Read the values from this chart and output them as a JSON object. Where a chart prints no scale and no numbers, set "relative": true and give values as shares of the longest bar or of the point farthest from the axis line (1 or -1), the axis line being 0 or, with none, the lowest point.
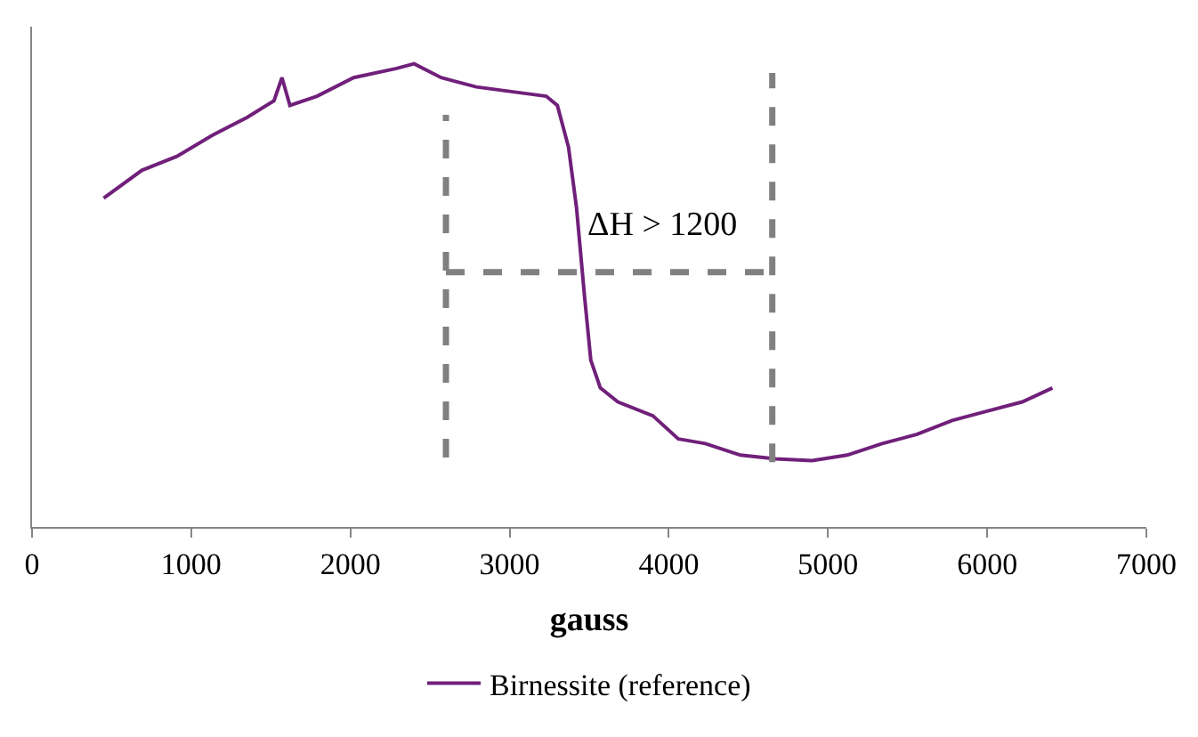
{
  "chart_data": {
    "type": "line",
    "relative": true,
    "xlabel": "gauss",
    "xlim": [
      0,
      7000
    ],
    "xticks": [
      0,
      1000,
      2000,
      3000,
      4000,
      5000,
      6000,
      7000
    ],
    "legend": "bottom",
    "annotations": [
      "ΔH > 1200"
    ],
    "series": [
      {
        "name": "Birnessite (reference)",
        "color": "#70207a",
        "line_style": "solid",
        "x": [
          450,
          690,
          910,
          1130,
          1350,
          1520,
          1570,
          1620,
          1790,
          2020,
          2290,
          2400,
          2570,
          2790,
          3010,
          3230,
          3300,
          3370,
          3420,
          3470,
          3510,
          3570,
          3680,
          3900,
          4060,
          4230,
          4450,
          4670,
          4900,
          5120,
          5340,
          5560,
          5780,
          6000,
          6220,
          6410
        ],
        "values": [
          0.71,
          0.77,
          0.8,
          0.845,
          0.884,
          0.92,
          0.97,
          0.91,
          0.93,
          0.97,
          0.99,
          1.0,
          0.97,
          0.95,
          0.94,
          0.93,
          0.91,
          0.82,
          0.69,
          0.5,
          0.36,
          0.3,
          0.27,
          0.24,
          0.19,
          0.18,
          0.155,
          0.147,
          0.143,
          0.155,
          0.18,
          0.2,
          0.23,
          0.25,
          0.27,
          0.3
        ]
      },
      {
        "color": "#808080",
        "line_style": "dashed",
        "x": [
          2600,
          2600
        ],
        "values": [
          0.15,
          0.89
        ]
      },
      {
        "color": "#808080",
        "line_style": "dashed",
        "x": [
          4650,
          4650
        ],
        "values": [
          0.14,
          0.98
        ]
      },
      {
        "color": "#808080",
        "line_style": "dashed",
        "x": [
          2600,
          4650
        ],
        "values": [
          0.55,
          0.55
        ]
      }
    ]
  }
}
